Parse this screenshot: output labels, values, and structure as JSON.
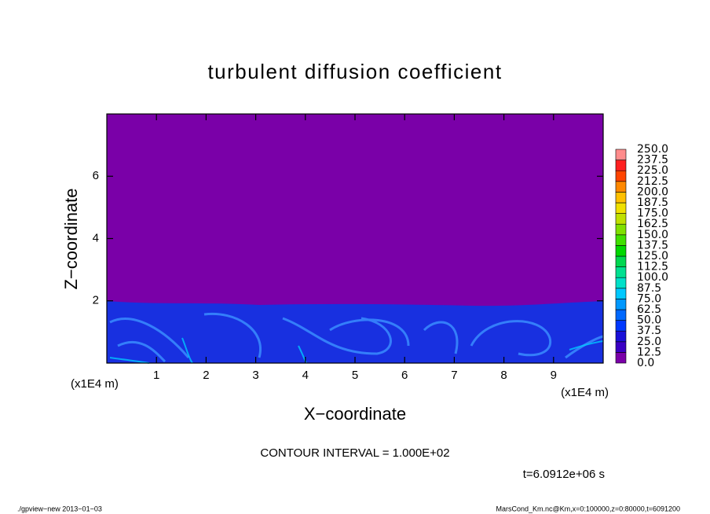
{
  "chart_data": {
    "type": "contour",
    "title": "turbulent diffusion coefficient",
    "x_label": "X−coordinate",
    "y_label": "Z−coordinate",
    "x_unit": "(x1E4 m)",
    "xlim": [
      0,
      10
    ],
    "ylim": [
      0,
      8
    ],
    "xticks": [
      1,
      2,
      3,
      4,
      5,
      6,
      7,
      8,
      9
    ],
    "yticks": [
      2,
      4,
      6
    ],
    "colorbar": {
      "levels": [
        {
          "value": 0,
          "label": "0.0"
        },
        12.5,
        {
          "value": 25,
          "label": "25.0"
        },
        37.5,
        {
          "value": 50,
          "label": "50.0"
        },
        62.5,
        {
          "value": 75,
          "label": "75.0"
        },
        87.5,
        {
          "value": 100,
          "label": "100.0"
        },
        112.5,
        {
          "value": 125,
          "label": "125.0"
        },
        137.5,
        {
          "value": 150,
          "label": "150.0"
        },
        162.5,
        {
          "value": 175,
          "label": "175.0"
        },
        187.5,
        {
          "value": 200,
          "label": "200.0"
        },
        212.5,
        {
          "value": 225,
          "label": "225.0"
        },
        237.5,
        {
          "value": 250,
          "label": "250.0"
        }
      ],
      "colors": [
        "#7a00a8",
        "#3a00c4",
        "#1a10d8",
        "#0038ff",
        "#0068ff",
        "#0098ff",
        "#00c8ff",
        "#00e0c8",
        "#00e090",
        "#00d850",
        "#00d800",
        "#40e000",
        "#80e000",
        "#c0e000",
        "#f0e000",
        "#ffc000",
        "#ff8800",
        "#ff4400",
        "#ff2020",
        "#ff8c8c"
      ]
    },
    "contour_interval": "CONTOUR INTERVAL = 1.000E+02",
    "time_label": "t=6.0912e+06 s",
    "footer_left": "./gpview−new  2013−01−03",
    "footer_right": "MarsCond_Km.nc@Km,x=0:100000,z=0:80000,t=6091200"
  }
}
